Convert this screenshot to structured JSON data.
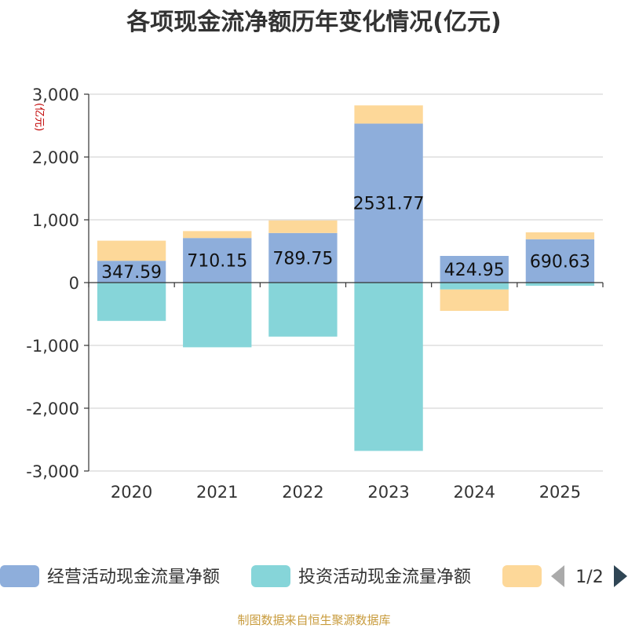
{
  "chart_data": {
    "type": "bar",
    "stacked": true,
    "title": "各项现金流净额历年变化情况(亿元)",
    "ylabel": "(亿元)",
    "xlabel": "",
    "ylim": [
      -3000,
      3000
    ],
    "yticks": [
      3000,
      2000,
      1000,
      0,
      -1000,
      -2000,
      -3000
    ],
    "ytick_labels": [
      "3,000",
      "2,000",
      "1,000",
      "0",
      "-1,000",
      "-2,000",
      "-3,000"
    ],
    "grid": true,
    "legend_position": "bottom",
    "categories": [
      "2020",
      "2021",
      "2022",
      "2023",
      "2024",
      "2025"
    ],
    "series": [
      {
        "name": "经营活动现金流量净额",
        "color": "#8eaedb",
        "values": [
          347.59,
          710.15,
          789.75,
          2531.77,
          424.95,
          690.63
        ],
        "labels": [
          "347.59",
          "710.15",
          "789.75",
          "2531.77",
          "424.95",
          "690.63"
        ]
      },
      {
        "name": "投资活动现金流量净额",
        "color": "#86d5d9",
        "values": [
          -610,
          -1030,
          -860,
          -2680,
          -110,
          -50
        ]
      },
      {
        "name": "",
        "color": "#fdd899",
        "values": [
          320,
          110,
          200,
          290,
          -340,
          110
        ]
      }
    ],
    "legend_page": "1/2",
    "source": "制图数据来自恒生聚源数据库"
  }
}
